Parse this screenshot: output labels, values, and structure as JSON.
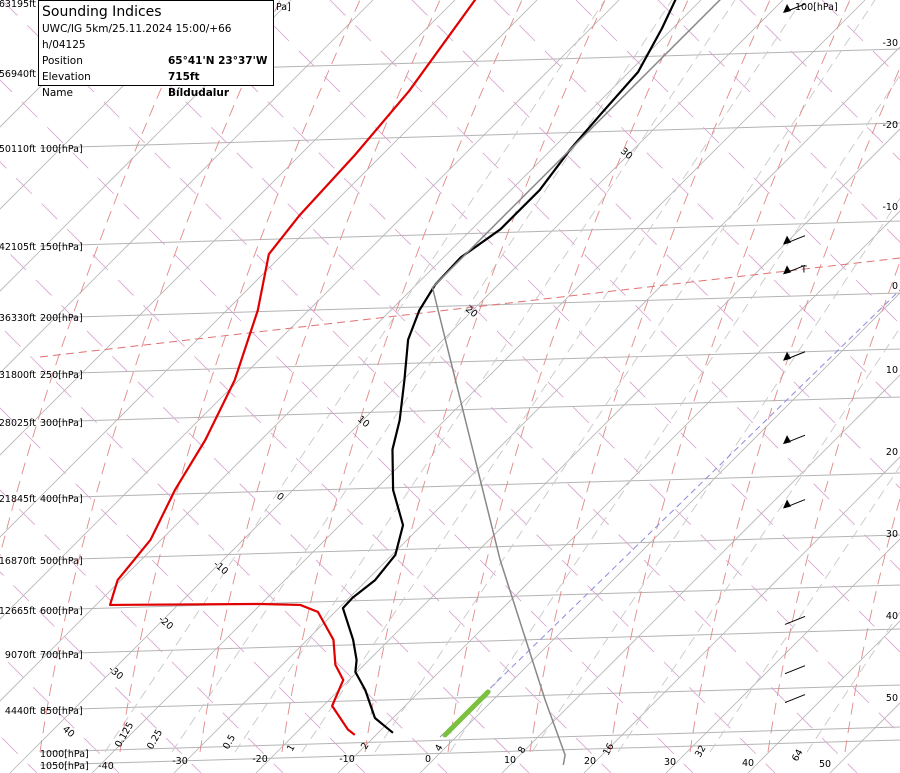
{
  "info_box": {
    "title": "Sounding Indices",
    "model_line": "UWC/IG 5km/25.11.2024 15:00/+66 h/04125",
    "rows": [
      {
        "label": "Position",
        "value": "65°41'N 23°37'W"
      },
      {
        "label": "Elevation",
        "value": "715ft"
      },
      {
        "label": "Name",
        "value": "Bíldudalur"
      }
    ]
  },
  "chart_data": {
    "type": "line",
    "subtype": "skew-T log-p sounding",
    "grid": true,
    "colors": {
      "temperature": "#000000",
      "dewpoint": "#e00000",
      "parcel": "#888888",
      "isotherm": "#b4b4b4",
      "dry_adiabat": "#d8a0d0",
      "moist_adiabat": "#e08a8a",
      "mixing_ratio": "#c8c8c8",
      "freezing_line": "#8a8ae0",
      "freezing_marker": "#7cc040",
      "tropopause": "#e07070"
    },
    "pressure_levels": [
      {
        "height": "63195ft",
        "label": ""
      },
      {
        "height": "56940ft",
        "label": ""
      },
      {
        "height": "50110ft",
        "label": "100[hPa]",
        "p": 100
      },
      {
        "height": "42105ft",
        "label": "150[hPa]",
        "p": 150
      },
      {
        "height": "36330ft",
        "label": "200[hPa]",
        "p": 200
      },
      {
        "height": "31800ft",
        "label": "250[hPa]",
        "p": 250
      },
      {
        "height": "28025ft",
        "label": "300[hPa]",
        "p": 300
      },
      {
        "height": "21845ft",
        "label": "400[hPa]",
        "p": 400
      },
      {
        "height": "16870ft",
        "label": "500[hPa]",
        "p": 500
      },
      {
        "height": "12665ft",
        "label": "600[hPa]",
        "p": 600
      },
      {
        "height": "9070ft",
        "label": "700[hPa]",
        "p": 700
      },
      {
        "height": "4440ft",
        "label": "850[hPa]",
        "p": 850
      },
      {
        "height": "",
        "label": "1000[hPa]",
        "p": 1000
      },
      {
        "height": "",
        "label": "1050[hPa]",
        "p": 1050
      }
    ],
    "top_right_label": "100[hPa]",
    "top_left_partial_label": "Pa]",
    "temperature_ticks_bottom": [
      "-40",
      "-30",
      "-20",
      "-10",
      "0",
      "10",
      "20",
      "30",
      "40",
      "50"
    ],
    "temperature_ticks_right": [
      "-30",
      "-20",
      "-10",
      "0",
      "10",
      "20",
      "30",
      "40",
      "50"
    ],
    "mixing_ratio_labels": [
      "0.125",
      "0.25",
      "0.5",
      "1",
      "2",
      "4",
      "8",
      "16",
      "32",
      "64"
    ],
    "adiabat_labels": [
      "30",
      "20",
      "10",
      "0",
      "-10",
      "-20",
      "-30",
      "40"
    ],
    "xlabel": "",
    "ylabel": "",
    "series": [
      {
        "role": "temperature",
        "points": [
          [
            923,
            -8.2
          ],
          [
            875,
            -12.2
          ],
          [
            793,
            -16.8
          ],
          [
            745,
            -20.2
          ],
          [
            715,
            -21.5
          ],
          [
            666,
            -24.4
          ],
          [
            596,
            -29.5
          ],
          [
            574,
            -29.6
          ],
          [
            538,
            -29.0
          ],
          [
            491,
            -29.6
          ],
          [
            441,
            -32.3
          ],
          [
            388,
            -37.8
          ],
          [
            333,
            -42.8
          ],
          [
            298,
            -45.5
          ],
          [
            256,
            -49.8
          ],
          [
            218,
            -54.3
          ],
          [
            194,
            -56.5
          ],
          [
            175,
            -57.7
          ],
          [
            157,
            -57.9
          ],
          [
            140,
            -56.5
          ],
          [
            119,
            -56.5
          ],
          [
            101,
            -57.7
          ],
          [
            87,
            -58.3
          ],
          [
            73,
            -58.9
          ],
          [
            61,
            -61.3
          ],
          [
            54,
            -63.2
          ]
        ]
      },
      {
        "role": "dewpoint",
        "points": [
          [
            930,
            -12.6
          ],
          [
            912,
            -14.1
          ],
          [
            838,
            -18.9
          ],
          [
            766,
            -20.7
          ],
          [
            727,
            -23.5
          ],
          [
            666,
            -26.8
          ],
          [
            604,
            -32.1
          ],
          [
            589,
            -35.1
          ],
          [
            587,
            -40.1
          ],
          [
            589,
            -58.3
          ],
          [
            538,
            -60.4
          ],
          [
            465,
            -61.3
          ],
          [
            388,
            -64.4
          ],
          [
            321,
            -66.8
          ],
          [
            256,
            -70.5
          ],
          [
            194,
            -76.2
          ],
          [
            155,
            -81.7
          ],
          [
            132,
            -82.7
          ],
          [
            103,
            -83.3
          ],
          [
            79,
            -84.5
          ],
          [
            54,
            -87.6
          ]
        ]
      },
      {
        "role": "parcel",
        "points": [
          [
            1050,
            16.5
          ],
          [
            1000,
            15.5
          ],
          [
            820,
            6.3
          ],
          [
            500,
            -16.2
          ],
          [
            177,
            -57.7
          ],
          [
            124,
            -57.7
          ],
          [
            54,
            -57.7
          ]
        ]
      }
    ],
    "wind_barbs": [
      {
        "p": 100,
        "kind": "pennant"
      },
      {
        "p": 151,
        "kind": "pennant+3 barbs"
      },
      {
        "p": 170,
        "kind": "pennant+3 barbs",
        "marker": "T"
      },
      {
        "p": 240,
        "kind": "2 pennants"
      },
      {
        "p": 330,
        "kind": "pennant+3 barbs"
      },
      {
        "p": 420,
        "kind": "pennant"
      },
      {
        "p": 640,
        "kind": "calm shaft"
      },
      {
        "p": 760,
        "kind": "2 barbs"
      },
      {
        "p": 840,
        "kind": "4 barbs"
      }
    ]
  }
}
